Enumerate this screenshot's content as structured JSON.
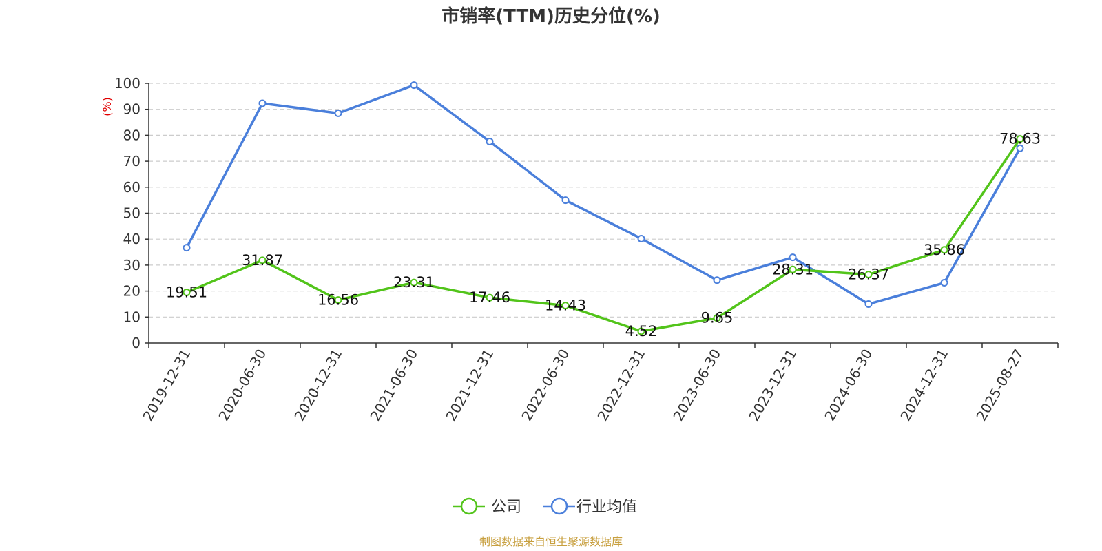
{
  "chart_data": {
    "type": "line",
    "title": "市销率(TTM)历史分位(%)",
    "ylabel": "(%)",
    "ylim": [
      0,
      100
    ],
    "yticks": [
      0,
      10,
      20,
      30,
      40,
      50,
      60,
      70,
      80,
      90,
      100
    ],
    "grid": "horizontal-dashed",
    "categories": [
      "2019-12-31",
      "2020-06-30",
      "2020-12-31",
      "2021-06-30",
      "2021-12-31",
      "2022-06-30",
      "2022-12-31",
      "2023-06-30",
      "2023-12-31",
      "2024-06-30",
      "2024-12-31",
      "2025-08-27"
    ],
    "series": [
      {
        "name": "公司",
        "color": "#52c41a",
        "labels": true,
        "values": [
          19.51,
          31.87,
          16.56,
          23.31,
          17.46,
          14.43,
          4.52,
          9.65,
          28.31,
          26.37,
          35.86,
          78.63
        ]
      },
      {
        "name": "行业均值",
        "color": "#4a7fdb",
        "labels": false,
        "values": [
          36.7,
          92.3,
          88.5,
          99.3,
          77.6,
          55.0,
          40.2,
          24.2,
          33.0,
          15.0,
          23.2,
          75.0
        ]
      }
    ],
    "legend_position": "bottom-center",
    "unit_color": "#e00000"
  },
  "footer": {
    "source": "制图数据来自恒生聚源数据库",
    "color": "#c8a040"
  }
}
